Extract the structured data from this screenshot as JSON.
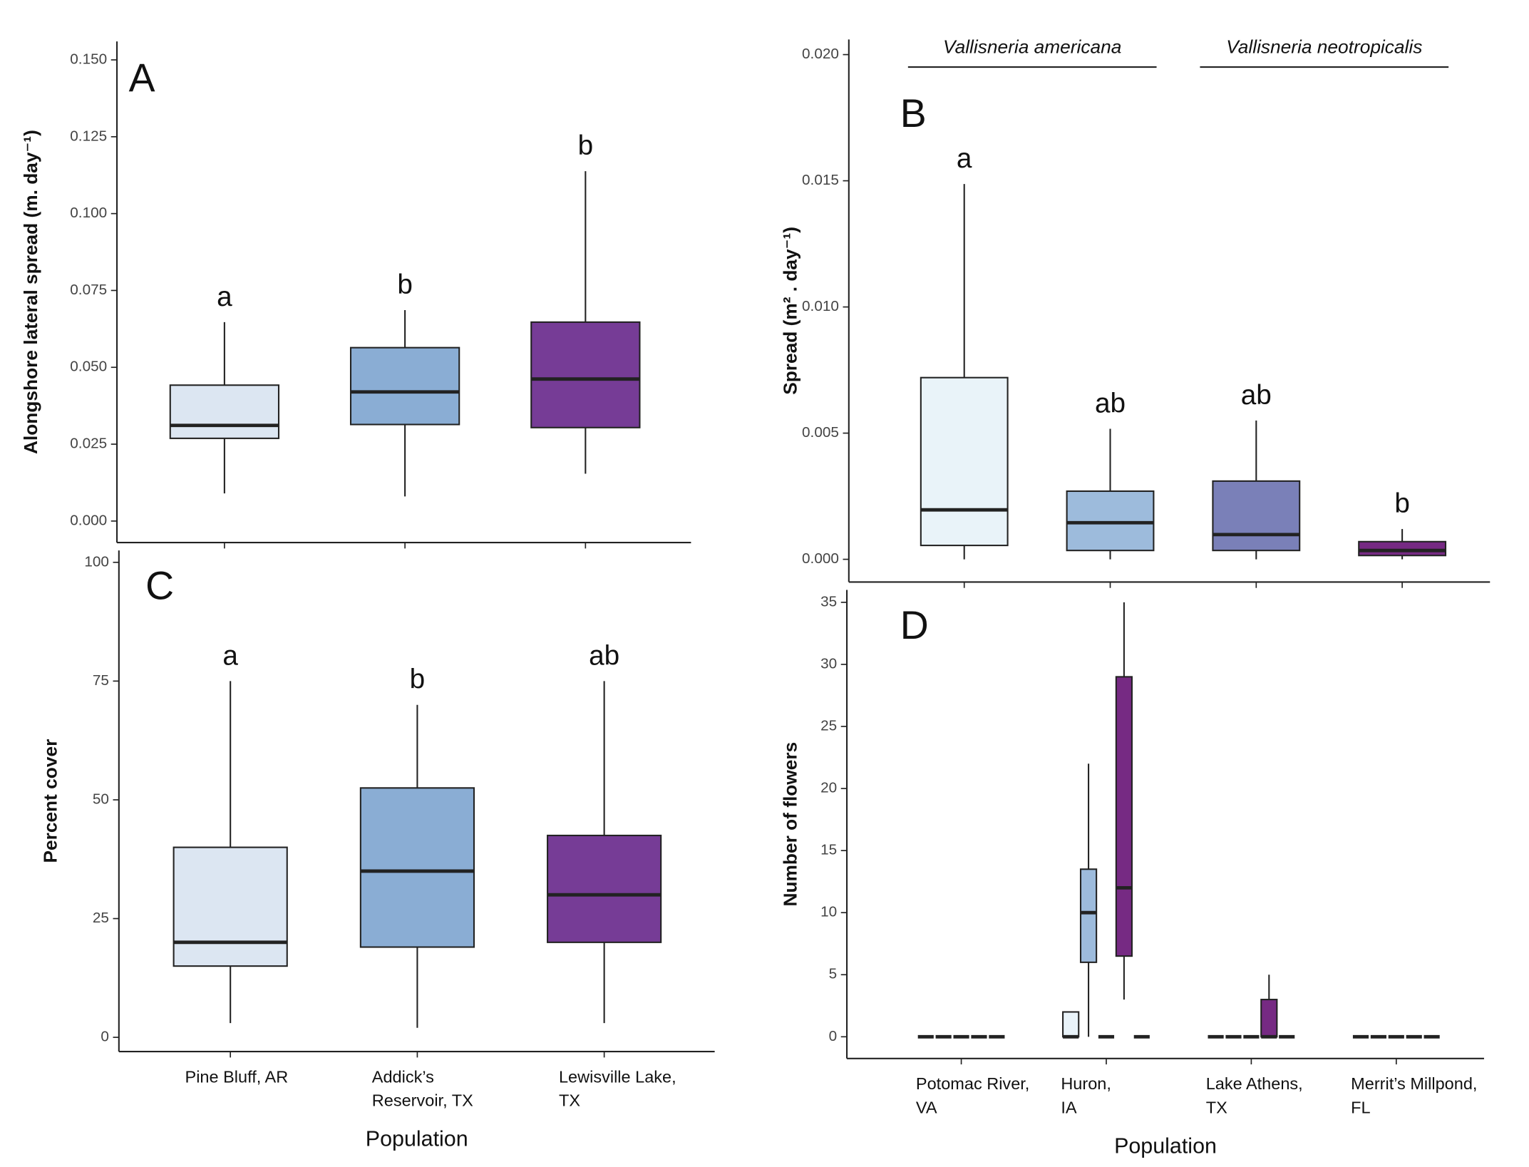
{
  "chart_data": [
    {
      "type": "box",
      "title": "A",
      "y_label": "Alongshore lateral spread (m. day⁻¹)",
      "categories": [
        null,
        null,
        null
      ],
      "colors": [
        "#dce6f2",
        "#8aadd4",
        "#763c96"
      ],
      "boxes": [
        {
          "min": 0.009,
          "q1": 0.0269,
          "median": 0.0311,
          "q3": 0.0442,
          "max": 0.0647
        },
        {
          "min": 0.008,
          "q1": 0.0314,
          "median": 0.042,
          "q3": 0.0564,
          "max": 0.0686
        },
        {
          "min": 0.0154,
          "q1": 0.0304,
          "median": 0.0462,
          "q3": 0.0647,
          "max": 0.1138
        }
      ],
      "letters": [
        "a",
        "b",
        "b"
      ],
      "ylim": [
        -0.007,
        0.156
      ],
      "yticks": [
        {
          "value": 0,
          "label": "0.000"
        },
        {
          "value": 0.025,
          "label": "0.025"
        },
        {
          "value": 0.05,
          "label": "0.050"
        },
        {
          "value": 0.075,
          "label": "0.075"
        },
        {
          "value": 0.1,
          "label": "0.100"
        },
        {
          "value": 0.125,
          "label": "0.125"
        },
        {
          "value": 0.15,
          "label": "0.150"
        }
      ]
    },
    {
      "type": "box",
      "title": "B",
      "y_label": "Spread (m² . day⁻¹)",
      "species": [
        "Vallisneria americana",
        "Vallisneria neotropicalis"
      ],
      "categories": [
        null,
        null,
        null,
        null
      ],
      "colors": [
        "#e9f3f9",
        "#9dbbdc",
        "#7a80b8",
        "#762a83"
      ],
      "boxes": [
        {
          "min": 0,
          "q1": 0.00055,
          "median": 0.00196,
          "q3": 0.0072,
          "max": 0.01487
        },
        {
          "min": 0,
          "q1": 0.00035,
          "median": 0.00145,
          "q3": 0.0027,
          "max": 0.00517
        },
        {
          "min": 0,
          "q1": 0.00035,
          "median": 0.00098,
          "q3": 0.0031,
          "max": 0.0055
        },
        {
          "min": 0,
          "q1": 0.00015,
          "median": 0.00035,
          "q3": 0.0007,
          "max": 0.0012
        }
      ],
      "letters": [
        "a",
        "ab",
        "ab",
        "b"
      ],
      "ylim": [
        -0.0009,
        0.0206
      ],
      "yticks": [
        {
          "value": 0,
          "label": "0.000"
        },
        {
          "value": 0.005,
          "label": "0.005"
        },
        {
          "value": 0.01,
          "label": "0.010"
        },
        {
          "value": 0.015,
          "label": "0.015"
        },
        {
          "value": 0.02,
          "label": "0.020"
        }
      ]
    },
    {
      "type": "box",
      "title": "C",
      "y_label": "Percent cover",
      "x_label": "Population",
      "categories": [
        "Pine Bluff, AR",
        "Addick’s Reservoir, TX",
        "Lewisville Lake, TX"
      ],
      "colors": [
        "#dce6f2",
        "#8aadd4",
        "#763c96"
      ],
      "boxes": [
        {
          "min": 3,
          "q1": 15,
          "median": 20,
          "q3": 40,
          "max": 75
        },
        {
          "min": 2,
          "q1": 19,
          "median": 35,
          "q3": 52.5,
          "max": 70
        },
        {
          "min": 3,
          "q1": 20,
          "median": 30,
          "q3": 42.5,
          "max": 75
        }
      ],
      "letters": [
        "a",
        "b",
        "ab"
      ],
      "ylim": [
        -3,
        102.5
      ],
      "yticks": [
        0,
        25,
        50,
        75,
        100
      ]
    },
    {
      "type": "box",
      "title": "D",
      "y_label": "Number of flowers",
      "x_label": "Population",
      "categories": [
        "Potomac River, VA",
        "Huron, IA",
        "Lake Athens, TX",
        "Merrit’s Millpond, FL"
      ],
      "series": [
        {
          "color": "#e9f3f9",
          "boxes": [
            {
              "min": 0,
              "q1": 0,
              "median": 0,
              "q3": 0,
              "max": 0
            },
            {
              "min": 0,
              "q1": 0,
              "median": 0,
              "q3": 2,
              "max": 2
            },
            {
              "min": 0,
              "q1": 0,
              "median": 0,
              "q3": 0,
              "max": 0
            },
            {
              "min": 0,
              "q1": 0,
              "median": 0,
              "q3": 0,
              "max": 0
            }
          ]
        },
        {
          "color": "#9dbbdc",
          "boxes": [
            {
              "min": 0,
              "q1": 0,
              "median": 0,
              "q3": 0,
              "max": 0
            },
            {
              "min": 0,
              "q1": 6,
              "median": 10,
              "q3": 13.5,
              "max": 22
            },
            {
              "min": 0,
              "q1": 0,
              "median": 0,
              "q3": 0,
              "max": 0
            },
            {
              "min": 0,
              "q1": 0,
              "median": 0,
              "q3": 0,
              "max": 0
            }
          ]
        },
        {
          "color": "#7a80b8",
          "boxes": [
            {
              "min": 0,
              "q1": 0,
              "median": 0,
              "q3": 0,
              "max": 0
            },
            {
              "min": 0,
              "q1": 0,
              "median": 0,
              "q3": 0,
              "max": 0
            },
            {
              "min": 0,
              "q1": 0,
              "median": 0,
              "q3": 0,
              "max": 0
            },
            {
              "min": 0,
              "q1": 0,
              "median": 0,
              "q3": 0,
              "max": 0
            }
          ]
        },
        {
          "color": "#762a83",
          "boxes": [
            {
              "min": 0,
              "q1": 0,
              "median": 0,
              "q3": 0,
              "max": 0
            },
            {
              "min": 3,
              "q1": 6.5,
              "median": 12,
              "q3": 29,
              "max": 35
            },
            {
              "min": 0,
              "q1": 0,
              "median": 0,
              "q3": 3,
              "max": 5
            },
            {
              "min": 0,
              "q1": 0,
              "median": 0,
              "q3": 0,
              "max": 0
            }
          ]
        },
        {
          "color": "#4d1a66",
          "boxes": [
            {
              "min": 0,
              "q1": 0,
              "median": 0,
              "q3": 0,
              "max": 0
            },
            {
              "min": 0,
              "q1": 0,
              "median": 0,
              "q3": 0,
              "max": 0
            },
            {
              "min": 0,
              "q1": 0,
              "median": 0,
              "q3": 0,
              "max": 0
            },
            {
              "min": 0,
              "q1": 0,
              "median": 0,
              "q3": 0,
              "max": 0
            }
          ]
        }
      ],
      "ylim": [
        -1.75,
        36
      ],
      "yticks": [
        0,
        5,
        10,
        15,
        20,
        25,
        30,
        35
      ]
    }
  ]
}
